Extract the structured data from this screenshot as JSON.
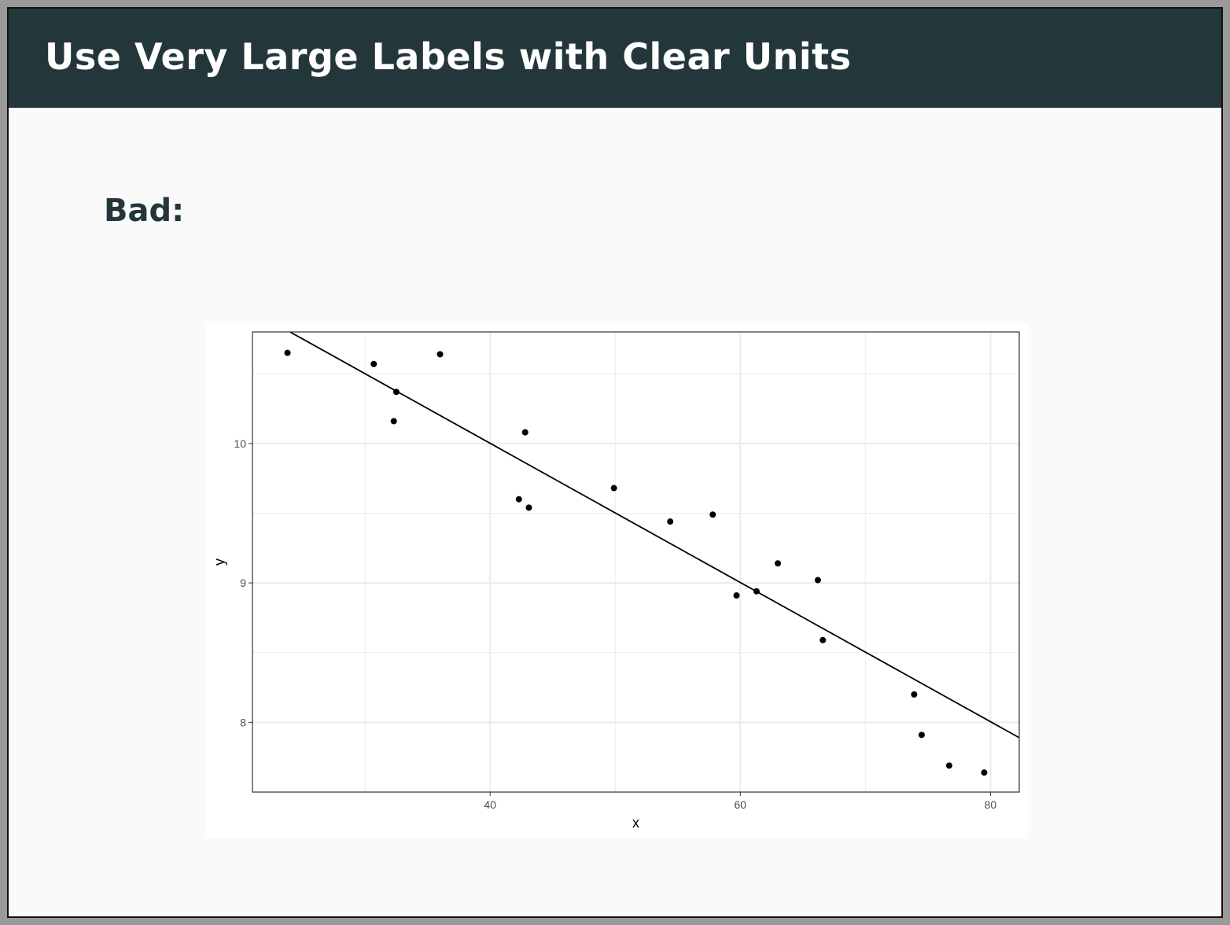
{
  "slide": {
    "title": "Use Very Large Labels with Clear Units",
    "subheading": "Bad:"
  },
  "colors": {
    "header_bg": "#23373b",
    "slide_bg": "#fafafa",
    "points": "#000000",
    "fit_line": "#000000",
    "grid": "#ebebeb"
  },
  "chart_data": {
    "type": "scatter",
    "xlabel": "x",
    "ylabel": "y",
    "xlim": [
      21,
      82.3
    ],
    "ylim": [
      7.5,
      10.8
    ],
    "xticks": [
      40,
      60,
      80
    ],
    "yticks": [
      8,
      9,
      10
    ],
    "xtick_labels": [
      "40",
      "60",
      "80"
    ],
    "ytick_labels": [
      "8",
      "9",
      "10"
    ],
    "grid": true,
    "legend": "none",
    "points": [
      {
        "x": 23.8,
        "y": 10.65
      },
      {
        "x": 30.7,
        "y": 10.57
      },
      {
        "x": 32.5,
        "y": 10.37
      },
      {
        "x": 32.3,
        "y": 10.16
      },
      {
        "x": 36.0,
        "y": 10.64
      },
      {
        "x": 42.8,
        "y": 10.08
      },
      {
        "x": 42.3,
        "y": 9.6
      },
      {
        "x": 43.1,
        "y": 9.54
      },
      {
        "x": 49.9,
        "y": 9.68
      },
      {
        "x": 54.4,
        "y": 9.44
      },
      {
        "x": 57.8,
        "y": 9.49
      },
      {
        "x": 59.7,
        "y": 8.91
      },
      {
        "x": 61.3,
        "y": 8.94
      },
      {
        "x": 63.0,
        "y": 9.14
      },
      {
        "x": 66.2,
        "y": 9.02
      },
      {
        "x": 66.6,
        "y": 8.59
      },
      {
        "x": 73.9,
        "y": 8.2
      },
      {
        "x": 74.5,
        "y": 7.91
      },
      {
        "x": 76.7,
        "y": 7.69
      },
      {
        "x": 79.5,
        "y": 7.64
      }
    ],
    "fit_line": {
      "x": [
        24.0,
        82.3
      ],
      "y": [
        10.8,
        7.89
      ]
    }
  }
}
